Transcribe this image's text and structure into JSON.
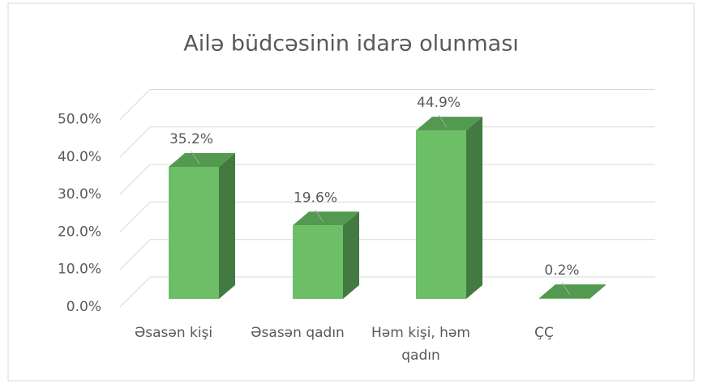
{
  "chart_data": {
    "type": "bar3d",
    "title": "Ailə büdcəsinin idarə olunması",
    "categories": [
      "Əsasən kişi",
      "Əsasən qadın",
      "Həm kişi, həm qadın",
      "ÇÇ"
    ],
    "values": [
      35.2,
      19.6,
      44.9,
      0.2
    ],
    "value_labels": [
      "35.2%",
      "19.6%",
      "44.9%",
      "0.2%"
    ],
    "color": "#6cbf67",
    "ylim": [
      0,
      50
    ],
    "yticks": [
      {
        "value": 0,
        "label": "0.0%"
      },
      {
        "value": 10,
        "label": "10.0%"
      },
      {
        "value": 20,
        "label": "20.0%"
      },
      {
        "value": 30,
        "label": "30.0%"
      },
      {
        "value": 40,
        "label": "40.0%"
      },
      {
        "value": 50,
        "label": "50.0%"
      }
    ],
    "grid": true
  }
}
